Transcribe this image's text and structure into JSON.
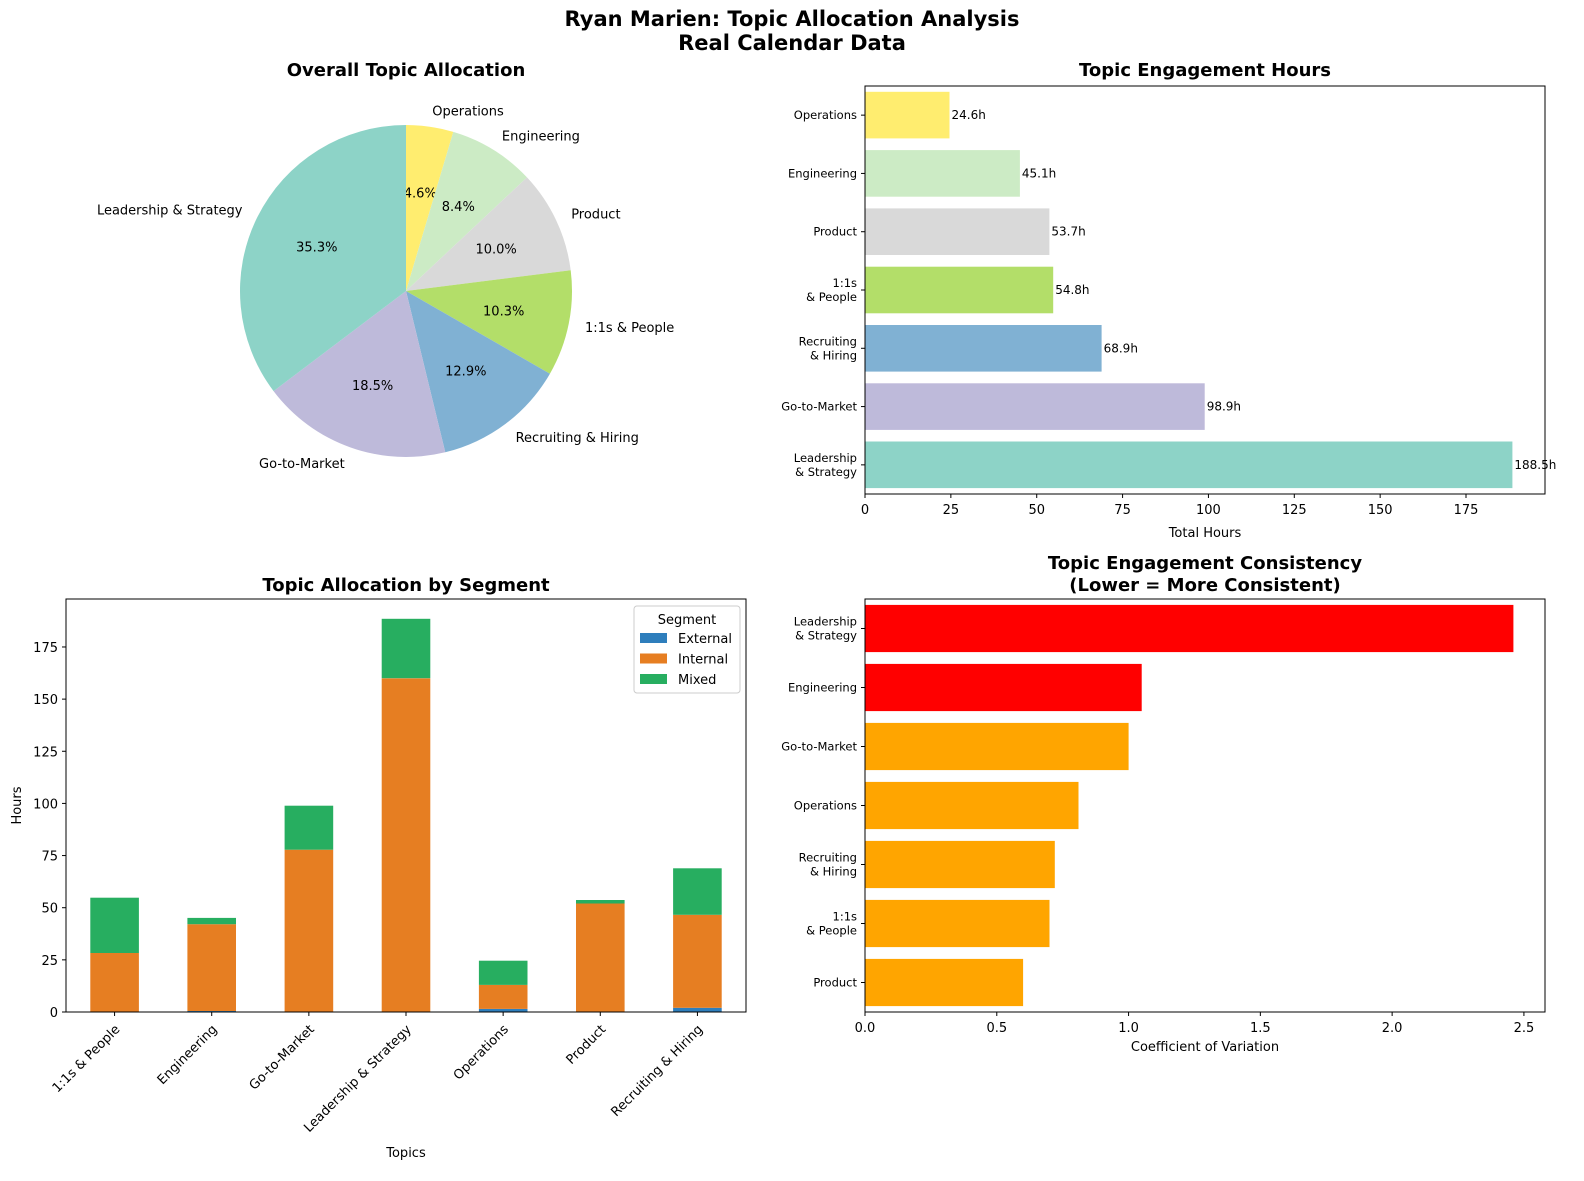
{
  "figure": {
    "title_line1": "Ryan Marien: Topic Allocation Analysis",
    "title_line2": "Real Calendar Data"
  },
  "chart_data": [
    {
      "type": "pie",
      "title": "Overall Topic Allocation",
      "labels": [
        "Operations",
        "Engineering",
        "Product",
        "1:1s & People",
        "Recruiting & Hiring",
        "Go-to-Market",
        "Leadership & Strategy"
      ],
      "values": [
        4.6,
        8.4,
        10.0,
        10.3,
        12.9,
        18.5,
        35.3
      ],
      "value_labels": [
        "4.6%",
        "8.4%",
        "10.0%",
        "10.3%",
        "12.9%",
        "18.5%",
        "35.3%"
      ],
      "colors": [
        "#ffed6f",
        "#ccebc5",
        "#d9d9d9",
        "#b3de69",
        "#80b1d3",
        "#bebada",
        "#8dd3c7"
      ],
      "start_angle_deg": 90,
      "direction": "clockwise"
    },
    {
      "type": "bar",
      "orientation": "horizontal",
      "title": "Topic Engagement Hours",
      "categories": [
        [
          "Operations"
        ],
        [
          "Engineering"
        ],
        [
          "Product"
        ],
        [
          "1:1s",
          "& People"
        ],
        [
          "Recruiting",
          "& Hiring"
        ],
        [
          "Go-to-Market"
        ],
        [
          "Leadership",
          "& Strategy"
        ]
      ],
      "values": [
        24.6,
        45.1,
        53.7,
        54.8,
        68.9,
        98.9,
        188.5
      ],
      "value_labels": [
        "24.6h",
        "45.1h",
        "53.7h",
        "54.8h",
        "68.9h",
        "98.9h",
        "188.5h"
      ],
      "colors": [
        "#ffed6f",
        "#ccebc5",
        "#d9d9d9",
        "#b3de69",
        "#80b1d3",
        "#bebada",
        "#8dd3c7"
      ],
      "xlabel": "Total Hours",
      "xlim": [
        0,
        198
      ],
      "xticks": [
        0,
        25,
        50,
        75,
        100,
        125,
        150,
        175
      ]
    },
    {
      "type": "bar",
      "stacked": true,
      "title": "Topic Allocation by Segment",
      "categories": [
        "1:1s & People",
        "Engineering",
        "Go-to-Market",
        "Leadership & Strategy",
        "Operations",
        "Product",
        "Recruiting & Hiring"
      ],
      "series": [
        {
          "name": "External",
          "color": "#2e7ebc",
          "values": [
            0,
            0.5,
            0,
            0,
            1.5,
            0,
            2.0
          ]
        },
        {
          "name": "Internal",
          "color": "#e67e22",
          "values": [
            28.3,
            41.6,
            77.8,
            160.0,
            11.5,
            52.0,
            44.6
          ]
        },
        {
          "name": "Mixed",
          "color": "#27ae60",
          "values": [
            26.5,
            3.0,
            21.1,
            28.5,
            11.6,
            1.7,
            22.3
          ]
        }
      ],
      "legend_title": "Segment",
      "legend_position": "upper right",
      "xlabel": "Topics",
      "ylabel": "Hours",
      "ylim": [
        0,
        198
      ],
      "yticks": [
        0,
        25,
        50,
        75,
        100,
        125,
        150,
        175
      ]
    },
    {
      "type": "bar",
      "orientation": "horizontal",
      "title_line1": "Topic Engagement Consistency",
      "title_line2": "(Lower = More Consistent)",
      "categories": [
        [
          "Leadership",
          "& Strategy"
        ],
        [
          "Engineering"
        ],
        [
          "Go-to-Market"
        ],
        [
          "Operations"
        ],
        [
          "Recruiting",
          "& Hiring"
        ],
        [
          "1:1s",
          "& People"
        ],
        [
          "Product"
        ]
      ],
      "values": [
        2.46,
        1.05,
        1.0,
        0.81,
        0.72,
        0.7,
        0.6
      ],
      "colors": [
        "#ff0000",
        "#ff0000",
        "#ffa500",
        "#ffa500",
        "#ffa500",
        "#ffa500",
        "#ffa500"
      ],
      "xlabel": "Coefficient of Variation",
      "xlim": [
        0,
        2.58
      ],
      "xticks": [
        "0.0",
        "0.5",
        "1.0",
        "1.5",
        "2.0",
        "2.5"
      ]
    }
  ]
}
